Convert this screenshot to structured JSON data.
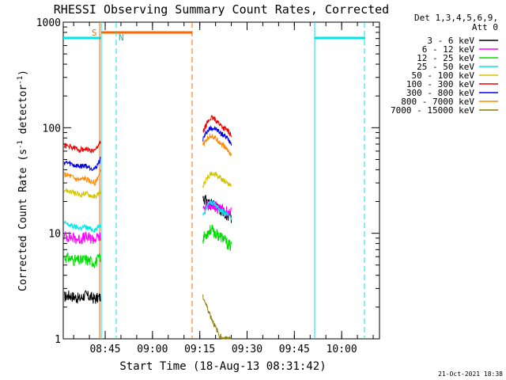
{
  "chart_data": {
    "type": "line",
    "title": "RHESSI Observing Summary Count Rates, Corrected",
    "xlabel": "Start Time (18-Aug-13 08:31:42)",
    "ylabel": "Corrected Count Rate (s",
    "ylabel_sup1": "-1",
    "ylabel_mid": " detector",
    "ylabel_sup2": "-1",
    "ylabel_end": ")",
    "y_scale": "log",
    "ylim": [
      1,
      1000
    ],
    "xlim": [
      "08:31:42",
      "10:12:00"
    ],
    "x_ticks": [
      "08:45",
      "09:00",
      "09:15",
      "09:30",
      "09:45",
      "10:00"
    ],
    "y_ticks": [
      "1",
      "10",
      "100",
      "1000"
    ],
    "legend": {
      "header1": "Det 1,3,4,5,6,9,",
      "header2": "Att 0",
      "placement": "right"
    },
    "series": [
      {
        "name": "3 - 6 keV",
        "color": "#000000",
        "pre": [
          2.5,
          2.6,
          2.5,
          2.4,
          2.6,
          2.5,
          2.4,
          2.5
        ],
        "post": [
          22,
          20,
          19,
          18,
          17,
          16,
          15,
          14
        ]
      },
      {
        "name": "6 - 12 keV",
        "color": "#ff00ff",
        "pre": [
          9.5,
          9.3,
          9.0,
          8.8,
          9.2,
          9.0,
          8.8,
          9.5
        ],
        "post": [
          16,
          18,
          19,
          18,
          17,
          17,
          16,
          16
        ]
      },
      {
        "name": "12 - 25 keV",
        "color": "#00dd00",
        "pre": [
          6.0,
          5.8,
          5.6,
          5.5,
          5.7,
          5.5,
          5.3,
          6.0
        ],
        "post": [
          9,
          10,
          11,
          10,
          9.5,
          9,
          8,
          7.5
        ]
      },
      {
        "name": "25 - 50 keV",
        "color": "#00e6e6",
        "pre": [
          12.5,
          12.0,
          11.5,
          11.2,
          11.5,
          11.0,
          10.8,
          12.0
        ],
        "post": [
          15,
          18,
          20,
          19,
          17,
          16,
          15,
          14
        ]
      },
      {
        "name": "50 - 100 keV",
        "color": "#d4c400",
        "pre": [
          26,
          25,
          24,
          23,
          24,
          23,
          22,
          25
        ],
        "post": [
          28,
          33,
          37,
          36,
          34,
          32,
          30,
          29
        ]
      },
      {
        "name": "100 - 300 keV",
        "color": "#ee0000",
        "pre": [
          68,
          66,
          64,
          62,
          63,
          61,
          60,
          75
        ],
        "post": [
          90,
          110,
          125,
          120,
          110,
          100,
          95,
          85
        ]
      },
      {
        "name": "300 - 800 keV",
        "color": "#0000ee",
        "pre": [
          47,
          46,
          44,
          43,
          44,
          42,
          41,
          50
        ],
        "post": [
          78,
          92,
          100,
          98,
          92,
          85,
          80,
          72
        ]
      },
      {
        "name": "800 - 7000 keV",
        "color": "#ff8800",
        "pre": [
          36,
          35,
          33,
          32,
          33,
          31,
          30,
          38
        ],
        "post": [
          68,
          78,
          85,
          80,
          74,
          68,
          62,
          55
        ]
      },
      {
        "name": "7000 - 15000 keV",
        "color": "#8b7d00",
        "pre": [],
        "post": [
          2.5,
          2.0,
          1.6,
          1.3,
          1.1,
          1.0,
          1.0,
          1.0
        ]
      }
    ],
    "annotations": [
      {
        "label": "S",
        "color": "#ff6600"
      },
      {
        "label": "N",
        "color": "#00e6e6"
      }
    ],
    "footer_date": "21-Oct-2021 18:38"
  }
}
